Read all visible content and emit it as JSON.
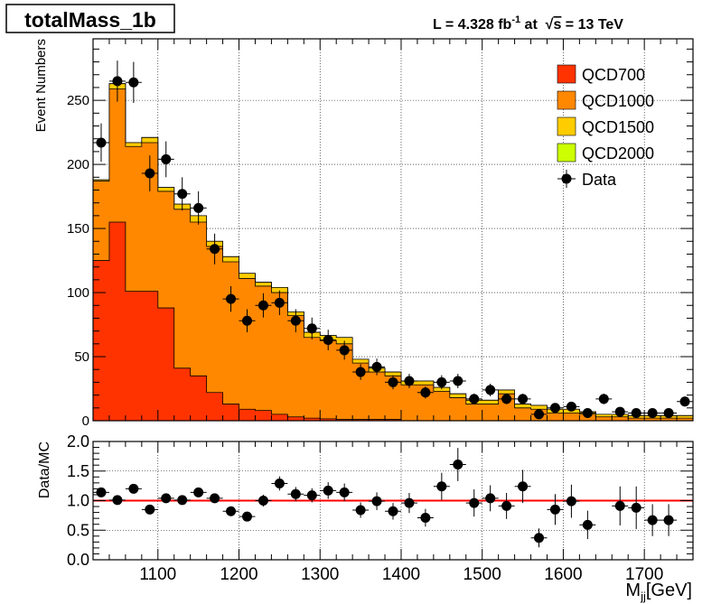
{
  "title_box": "totalMass_1b",
  "lumi": {
    "prefix": "L = 4.328 fb",
    "exponent": "-1",
    "middle": " at  ",
    "sqrt_symbol": "√",
    "s": "s",
    "suffix": " = 13 TeV"
  },
  "chart_data": [
    {
      "type": "histogram-stacked",
      "ylabel": "Event Numbers",
      "xlim": [
        1020,
        1760
      ],
      "ylim": [
        0,
        298
      ],
      "grid": true,
      "legend_placement": "top-right",
      "bin_edges": [
        1020,
        1040,
        1060,
        1080,
        1100,
        1120,
        1140,
        1160,
        1180,
        1200,
        1220,
        1240,
        1260,
        1280,
        1300,
        1320,
        1340,
        1360,
        1380,
        1400,
        1420,
        1440,
        1460,
        1480,
        1500,
        1520,
        1540,
        1560,
        1580,
        1600,
        1620,
        1640,
        1660,
        1680,
        1700,
        1720,
        1740,
        1760
      ],
      "series": [
        {
          "name": "QCD700",
          "color": "#ff3300",
          "values": [
            125,
            155,
            101,
            101,
            88,
            41,
            35,
            22,
            13,
            9,
            8,
            5,
            3,
            2,
            1.5,
            1,
            1,
            1,
            1,
            0,
            0,
            0,
            0,
            0,
            0,
            0,
            0,
            0,
            0,
            0,
            0,
            0,
            0,
            0,
            0,
            0,
            0
          ]
        },
        {
          "name": "QCD1000",
          "color": "#ff8800",
          "values": [
            62,
            104,
            113,
            116,
            91,
            124,
            120,
            114,
            111,
            102,
            97,
            95,
            79,
            63,
            61,
            59,
            44,
            37,
            34,
            28,
            28,
            23,
            18,
            13,
            13,
            21,
            10,
            9,
            6,
            6,
            5,
            3,
            3,
            2,
            2,
            2,
            2
          ]
        },
        {
          "name": "QCD1500",
          "color": "#ffcc00",
          "values": [
            1,
            4,
            3,
            4,
            3,
            4,
            5,
            4,
            4,
            4,
            3,
            4,
            3,
            4,
            4,
            5,
            3,
            3,
            3,
            3,
            3,
            3,
            3,
            3,
            3,
            3,
            3,
            3,
            3,
            3,
            2,
            2,
            2,
            2,
            2,
            2,
            2
          ]
        },
        {
          "name": "QCD2000",
          "color": "#ccff00",
          "values": [
            0,
            0,
            0,
            0,
            0,
            0,
            0,
            0,
            0,
            0,
            0,
            0,
            0,
            0,
            0,
            0,
            0,
            0,
            0,
            0,
            0,
            0,
            0,
            0,
            0,
            0,
            0,
            0,
            0,
            0,
            0,
            0,
            0,
            0,
            0,
            0,
            0
          ]
        }
      ],
      "data_series": {
        "name": "Data",
        "color": "#000000",
        "x": [
          1030,
          1050,
          1070,
          1090,
          1110,
          1130,
          1150,
          1170,
          1190,
          1210,
          1230,
          1250,
          1270,
          1290,
          1310,
          1330,
          1350,
          1370,
          1390,
          1410,
          1430,
          1450,
          1470,
          1490,
          1510,
          1530,
          1550,
          1570,
          1590,
          1610,
          1630,
          1650,
          1670,
          1690,
          1710,
          1730,
          1750
        ],
        "y": [
          217,
          265,
          264,
          193,
          204,
          177,
          166,
          134,
          95,
          78,
          90,
          92,
          78,
          72,
          63,
          55,
          38,
          42,
          30,
          31,
          22,
          30,
          31,
          17,
          24,
          17,
          17,
          5,
          10,
          11,
          6,
          17,
          7,
          6,
          6,
          6,
          15
        ],
        "yerr": [
          15,
          16,
          16,
          14,
          14,
          13,
          13,
          12,
          10,
          9,
          9.5,
          9.6,
          9,
          8.5,
          8,
          7.4,
          6.2,
          6.5,
          5.5,
          5.6,
          4.7,
          5.5,
          5.6,
          4.1,
          4.9,
          4.1,
          4.1,
          2.2,
          3.2,
          3.3,
          2.4,
          4.1,
          2.6,
          2.4,
          2.4,
          2.4,
          3.9
        ]
      },
      "yticks": [
        0,
        50,
        100,
        150,
        200,
        250
      ]
    },
    {
      "type": "scatter",
      "ylabel": "Data/MC",
      "xlabel_main": "M",
      "xlabel_sub": "jj",
      "xlabel_rest": "[GeV]",
      "xlim": [
        1020,
        1760
      ],
      "ylim": [
        0,
        2
      ],
      "grid": true,
      "reference_line": {
        "y": 1.0,
        "color": "#ff0000"
      },
      "x": [
        1030,
        1050,
        1070,
        1090,
        1110,
        1130,
        1150,
        1170,
        1190,
        1210,
        1230,
        1250,
        1270,
        1290,
        1310,
        1330,
        1350,
        1370,
        1390,
        1410,
        1430,
        1450,
        1470,
        1490,
        1510,
        1530,
        1550,
        1570,
        1590,
        1610,
        1630,
        1650,
        1670,
        1690,
        1710,
        1730,
        1750
      ],
      "y": [
        1.14,
        1.01,
        1.2,
        0.85,
        1.04,
        1.01,
        1.14,
        1.04,
        0.82,
        0.73,
        1.0,
        1.29,
        1.11,
        1.09,
        1.17,
        1.14,
        0.84,
        0.99,
        0.82,
        0.96,
        0.71,
        1.24,
        1.61,
        0.96,
        1.04,
        0.91,
        1.24,
        0.37,
        0.85,
        0.99,
        0.59,
        null,
        0.91,
        0.88,
        0.67,
        0.67,
        null
      ],
      "yerr": [
        0.08,
        0.06,
        0.07,
        0.06,
        0.07,
        0.07,
        0.08,
        0.08,
        0.08,
        0.08,
        0.1,
        0.12,
        0.12,
        0.12,
        0.14,
        0.15,
        0.13,
        0.15,
        0.14,
        0.17,
        0.15,
        0.23,
        0.28,
        0.23,
        0.22,
        0.22,
        0.28,
        0.16,
        0.26,
        0.28,
        0.24,
        0,
        0.33,
        0.36,
        0.27,
        0.27,
        0
      ],
      "yticks": [
        0.0,
        0.5,
        1.0,
        1.5,
        2.0
      ],
      "ytick_labels": [
        "0.0",
        "0.5",
        "1.0",
        "1.5",
        "2.0"
      ],
      "xticks": [
        1100,
        1200,
        1300,
        1400,
        1500,
        1600,
        1700
      ],
      "xtick_labels": [
        "1100",
        "1200",
        "1300",
        "1400",
        "1500",
        "1600",
        "1700"
      ]
    }
  ]
}
